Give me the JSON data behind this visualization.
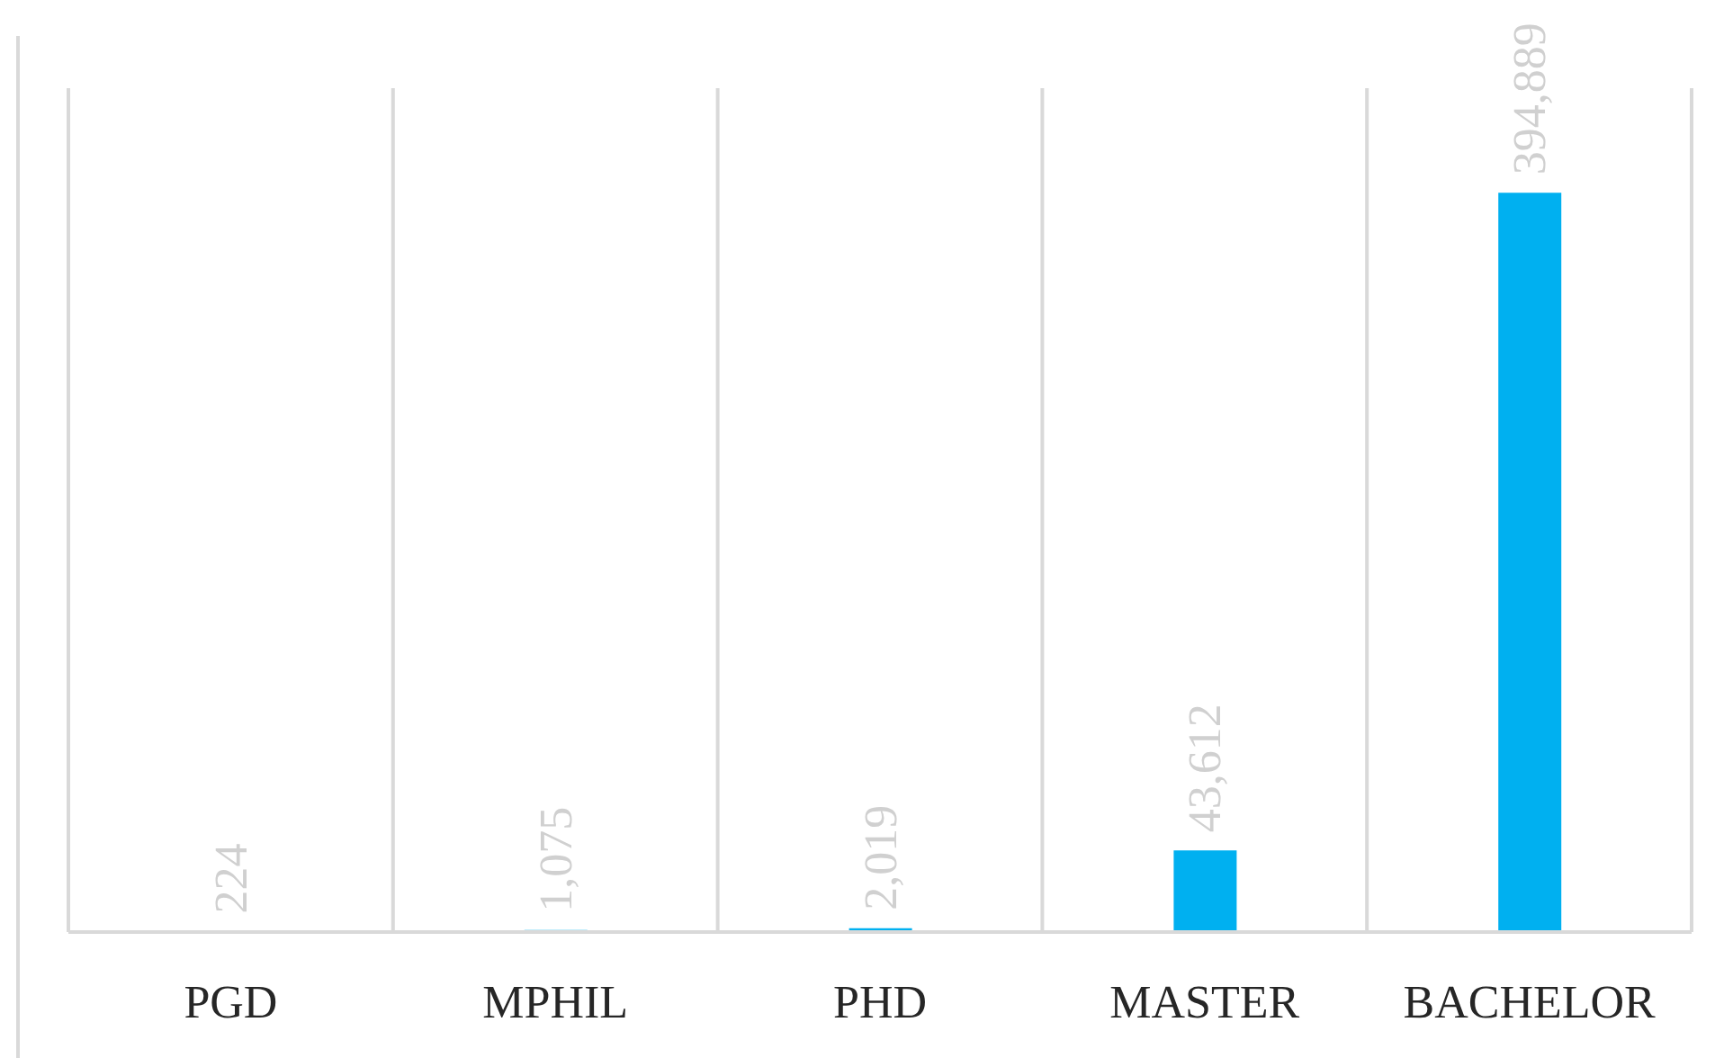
{
  "chart_data": {
    "type": "bar",
    "categories": [
      "PGD",
      "MPHIL",
      "PHD",
      "MASTER",
      "BACHELOR"
    ],
    "values": [
      224,
      1075,
      2019,
      43612,
      394889
    ],
    "value_labels": [
      "224",
      "1,075",
      "2,019",
      "43,612",
      "394,889"
    ],
    "color": "#00b0f0",
    "grid": "x"
  }
}
